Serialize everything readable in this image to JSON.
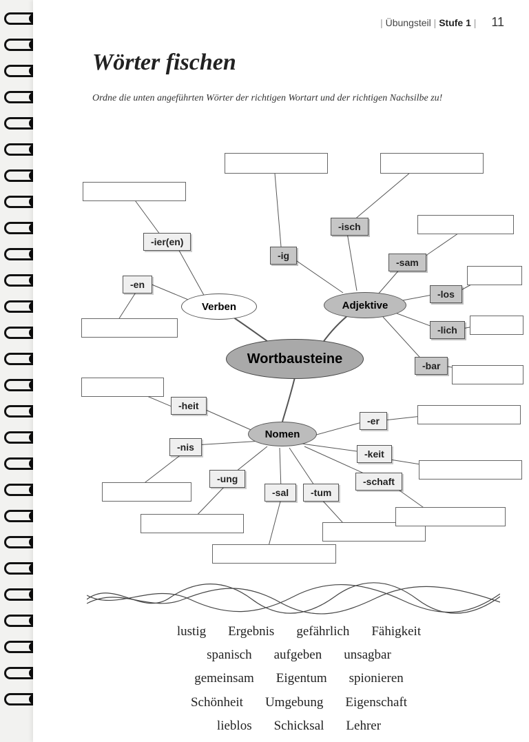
{
  "header": {
    "section": "Übungsteil",
    "level": "Stufe 1",
    "page": "11"
  },
  "title": "Wörter fischen",
  "instruction": "Ordne die unten angeführten Wörter der richtigen Wortart und der richtigen Nachsilbe zu!",
  "center": "Wortbausteine",
  "categories": {
    "verben": "Verben",
    "adjektive": "Adjektive",
    "nomen": "Nomen"
  },
  "suffixes": {
    "ieren": "-ier(en)",
    "en": "-en",
    "ig": "-ig",
    "isch": "-isch",
    "sam": "-sam",
    "los": "-los",
    "lich": "-lich",
    "bar": "-bar",
    "heit": "-heit",
    "nis": "-nis",
    "ung": "-ung",
    "sal": "-sal",
    "tum": "-tum",
    "er": "-er",
    "keit": "-keit",
    "schaft": "-schaft"
  },
  "wordbank": [
    [
      "lustig",
      "Ergebnis",
      "gefährlich",
      "Fähigkeit"
    ],
    [
      "spanisch",
      "aufgeben",
      "unsagbar"
    ],
    [
      "gemeinsam",
      "Eigentum",
      "spionieren"
    ],
    [
      "Schönheit",
      "Umgebung",
      "Eigenschaft"
    ],
    [
      "lieblos",
      "Schicksal",
      "Lehrer"
    ]
  ],
  "style": {
    "page_bg": "#ffffff",
    "tag_grey": "#c6c6c6",
    "tag_light": "#efefef",
    "ell_grey": "#bcbcbc",
    "center_grey": "#a9a9a9",
    "line": "#555555",
    "blank_w_large": 140,
    "blank_w_med": 120,
    "tag_h": 26
  }
}
